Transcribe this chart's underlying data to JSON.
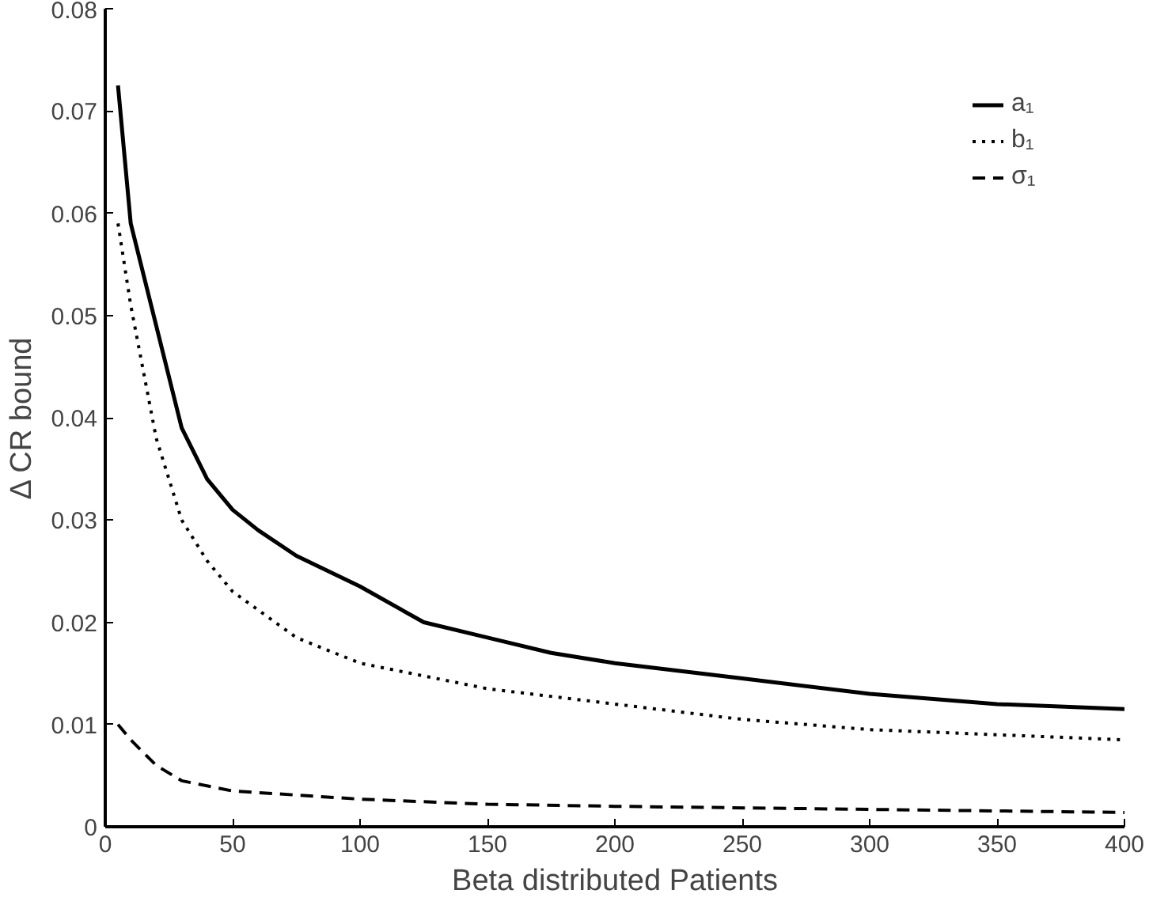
{
  "chart_data": {
    "type": "line",
    "xlabel": "Beta distributed Patients",
    "ylabel": "Δ CR bound",
    "xlim": [
      0,
      400
    ],
    "ylim": [
      0,
      0.08
    ],
    "xticks": [
      0,
      50,
      100,
      150,
      200,
      250,
      300,
      350,
      400
    ],
    "yticks": [
      0,
      0.01,
      0.02,
      0.03,
      0.04,
      0.05,
      0.06,
      0.07,
      0.08
    ],
    "grid": false,
    "legend": "top right",
    "marker": "none",
    "series": [
      {
        "name": "a₁",
        "color": "#000000",
        "line_style": "solid",
        "x": [
          5,
          10,
          20,
          30,
          40,
          50,
          60,
          75,
          100,
          125,
          150,
          175,
          200,
          250,
          300,
          350,
          400
        ],
        "values": [
          0.0725,
          0.059,
          0.049,
          0.039,
          0.034,
          0.031,
          0.029,
          0.0265,
          0.0235,
          0.02,
          0.0185,
          0.017,
          0.016,
          0.0145,
          0.013,
          0.012,
          0.0115
        ]
      },
      {
        "name": "b₁",
        "color": "#000000",
        "line_style": "dotted",
        "x": [
          5,
          10,
          20,
          30,
          40,
          50,
          75,
          100,
          150,
          200,
          250,
          300,
          350,
          400
        ],
        "values": [
          0.059,
          0.051,
          0.038,
          0.03,
          0.026,
          0.023,
          0.0185,
          0.016,
          0.0135,
          0.012,
          0.0105,
          0.0095,
          0.009,
          0.0085
        ]
      },
      {
        "name": "σ₁",
        "color": "#000000",
        "line_style": "dashed",
        "x": [
          5,
          10,
          20,
          30,
          50,
          100,
          150,
          200,
          300,
          400
        ],
        "values": [
          0.01,
          0.0085,
          0.006,
          0.0045,
          0.0035,
          0.0027,
          0.0022,
          0.002,
          0.0017,
          0.0014
        ]
      }
    ]
  }
}
